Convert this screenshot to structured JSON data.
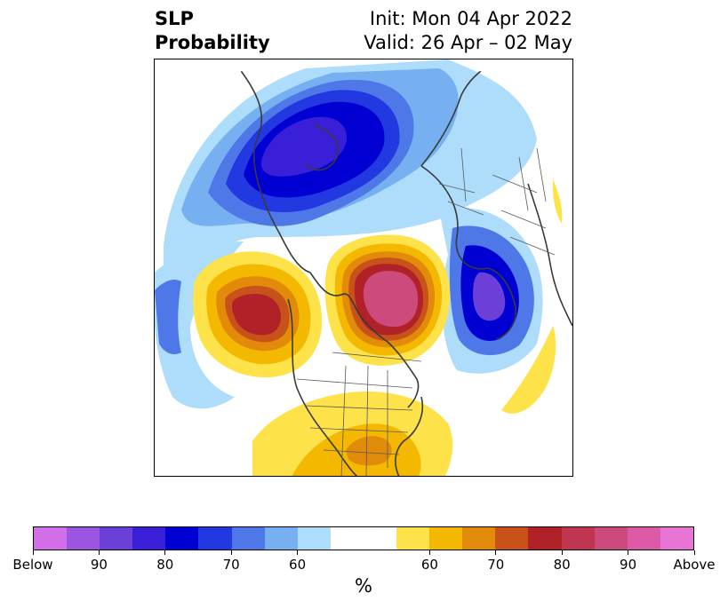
{
  "title": {
    "left_line1": "SLP",
    "left_line2": "Probability",
    "right_line1": "Init: Mon 04 Apr 2022",
    "right_line2": "Valid: 26 Apr – 02 May"
  },
  "colorbar": {
    "unit": "%",
    "below_colors": [
      "#d26fe8",
      "#9b55e0",
      "#6b3fd8",
      "#3a1fd8",
      "#0000d2",
      "#2238e0",
      "#4e78e8",
      "#76b0f0",
      "#aedcfb"
    ],
    "neutral_color": "#ffffff",
    "above_colors": [
      "#fde24a",
      "#f4b800",
      "#e28a0a",
      "#c9521a",
      "#b02228",
      "#c03550",
      "#cc4a7c",
      "#dc5aa6",
      "#e874d6"
    ],
    "tick_labels": [
      "Below",
      "90",
      "80",
      "70",
      "60",
      "60",
      "70",
      "80",
      "90",
      "Above"
    ]
  },
  "map": {
    "projection": "north-polar-stereographic",
    "features": [
      "coastlines",
      "country-borders",
      "us-state-borders"
    ]
  }
}
